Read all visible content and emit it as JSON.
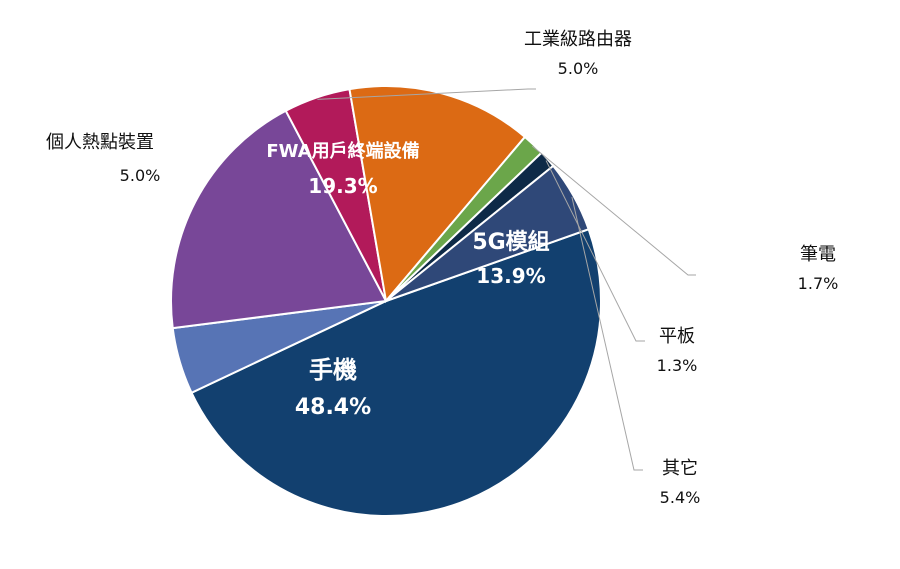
{
  "chart_data": {
    "type": "pie",
    "slices": [
      {
        "label": "手機",
        "value": 48.4,
        "value_label": "48.4%",
        "color": "#12406F"
      },
      {
        "label": "個人熱點裝置",
        "value": 5.0,
        "value_label": "5.0%",
        "color": "#5774B5"
      },
      {
        "label": "FWA用戶終端設備",
        "value": 19.3,
        "value_label": "19.3%",
        "color": "#784798"
      },
      {
        "label": "工業級路由器",
        "value": 5.0,
        "value_label": "5.0%",
        "color": "#B21A5A"
      },
      {
        "label": "5G模組",
        "value": 13.9,
        "value_label": "13.9%",
        "color": "#DC6A14"
      },
      {
        "label": "筆電",
        "value": 1.7,
        "value_label": "1.7%",
        "color": "#6BA64A"
      },
      {
        "label": "平板",
        "value": 1.3,
        "value_label": "1.3%",
        "color": "#0E2A47"
      },
      {
        "label": "其它",
        "value": 5.4,
        "value_label": "5.4%",
        "color": "#2F4878"
      }
    ],
    "legend": "none"
  }
}
